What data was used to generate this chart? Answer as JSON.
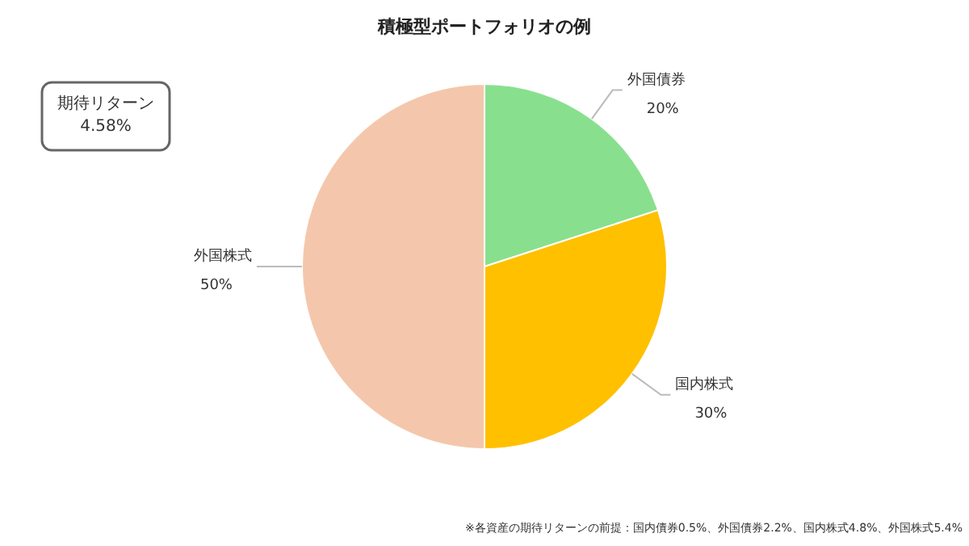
{
  "chart_data": {
    "type": "pie",
    "title": "積極型ポートフォリオの例",
    "categories": [
      "外国債券",
      "国内株式",
      "外国株式"
    ],
    "values": [
      20,
      30,
      50
    ],
    "value_labels": [
      "20%",
      "30%",
      "50%"
    ],
    "colors": [
      "#88e08e",
      "#ffc000",
      "#f4c7ac"
    ],
    "annotations": [
      "期待リターン\n4.58%",
      "※各資産の期待リターンの前提：国内債券0.5%、外国債券2.2%、国内株式4.8%、外国株式5.4%"
    ]
  }
}
